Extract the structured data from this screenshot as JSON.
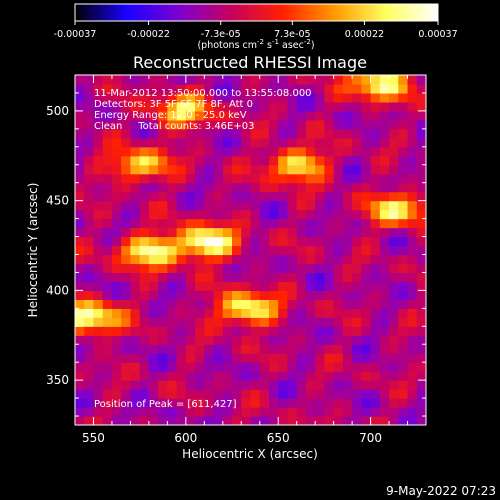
{
  "chart_data": {
    "type": "heatmap",
    "title": "Reconstructed RHESSI Image",
    "xlabel": "Heliocentric X (arcsec)",
    "ylabel": "Heliocentric Y (arcsec)",
    "xlim": [
      540,
      730
    ],
    "ylim": [
      325,
      520
    ],
    "xticks": [
      550,
      600,
      650,
      700
    ],
    "yticks": [
      350,
      400,
      450,
      500
    ],
    "colorbar": {
      "range": [
        -0.00037,
        0.00037
      ],
      "ticks": [
        "-0.00037",
        "-0.00022",
        "-7.3e-05",
        "7.3e-05",
        "0.00022",
        "0.00037"
      ],
      "tick_values": [
        -0.00037,
        -0.00022,
        -7.3e-05,
        7.3e-05,
        0.00022,
        0.00037
      ],
      "label_prefix": "(photons cm",
      "label_sup1": "-2",
      "label_mid1": " s",
      "label_sup2": "-1",
      "label_mid2": " asec",
      "label_sup3": "-2",
      "label_suffix": ")",
      "colormap": [
        "#000000",
        "#1a00ff",
        "#7d00d0",
        "#c60060",
        "#ff2000",
        "#ff9a00",
        "#ffff60",
        "#ffffff"
      ]
    },
    "info_lines": [
      "11-Mar-2012 13:50:00.000 to 13:55:08.000",
      "Detectors: 3F 5F 6F 7F 8F, Att 0",
      "Energy Range: 12.0 - 25.0 keV",
      "Clean     Total counts: 3.46E+03"
    ],
    "peak_label": "Position of Peak = [611,427]",
    "peak": [
      611,
      427
    ],
    "bright_regions": [
      {
        "x": 611,
        "y": 427,
        "value": 0.00037
      },
      {
        "x": 548,
        "y": 385,
        "value": 0.00034
      },
      {
        "x": 633,
        "y": 390,
        "value": 0.00032
      },
      {
        "x": 580,
        "y": 422,
        "value": 0.0003
      },
      {
        "x": 705,
        "y": 515,
        "value": 0.0003
      },
      {
        "x": 660,
        "y": 470,
        "value": 0.00027
      },
      {
        "x": 715,
        "y": 445,
        "value": 0.00026
      },
      {
        "x": 575,
        "y": 470,
        "value": 0.00024
      },
      {
        "x": 598,
        "y": 500,
        "value": 0.00024
      }
    ]
  },
  "timestamp": "9-May-2022 07:23"
}
